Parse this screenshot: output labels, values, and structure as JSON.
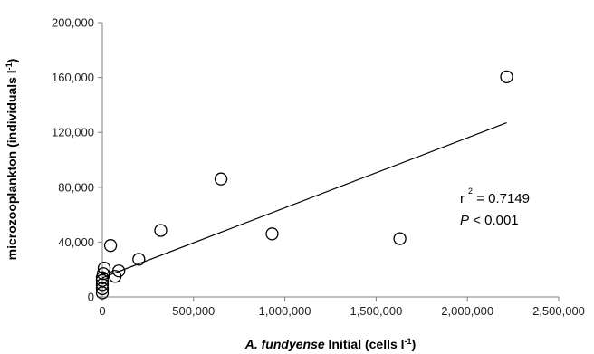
{
  "chart_data": {
    "type": "scatter",
    "xlabel_italic": "A. fundyense",
    "xlabel_rest": " Initial (cells l",
    "xlabel_sup": "-1",
    "xlabel_close": ")",
    "ylabel_main": "microzooplankton (individuals l",
    "ylabel_sup": "-1",
    "ylabel_close": ")",
    "xlim": [
      0,
      2500000
    ],
    "ylim": [
      0,
      200000
    ],
    "x_ticks": [
      "0",
      "500,000",
      "1,000,000",
      "1,500,000",
      "2,000,000",
      "2,500,000"
    ],
    "y_ticks": [
      "0",
      "40,000",
      "80,000",
      "120,000",
      "160,000",
      "200,000"
    ],
    "grid": false,
    "points": [
      {
        "x": 0,
        "y": 3000
      },
      {
        "x": 0,
        "y": 6000
      },
      {
        "x": 0,
        "y": 9000
      },
      {
        "x": 0,
        "y": 12000
      },
      {
        "x": 0,
        "y": 14000
      },
      {
        "x": 5000,
        "y": 17000
      },
      {
        "x": 10000,
        "y": 21000
      },
      {
        "x": 45000,
        "y": 37500
      },
      {
        "x": 70000,
        "y": 15000
      },
      {
        "x": 90000,
        "y": 19000
      },
      {
        "x": 200000,
        "y": 27500
      },
      {
        "x": 320000,
        "y": 48500
      },
      {
        "x": 650000,
        "y": 86000
      },
      {
        "x": 930000,
        "y": 46000
      },
      {
        "x": 1630000,
        "y": 42500
      },
      {
        "x": 2215000,
        "y": 160500
      }
    ],
    "trendline": {
      "x": [
        0,
        2215000
      ],
      "y": [
        14000,
        127000
      ]
    },
    "annotations": {
      "r_prefix": "r",
      "r_sup": "2",
      "r_value": " = 0.7149",
      "p_italic": "P",
      "p_rest": " < 0.001"
    }
  }
}
